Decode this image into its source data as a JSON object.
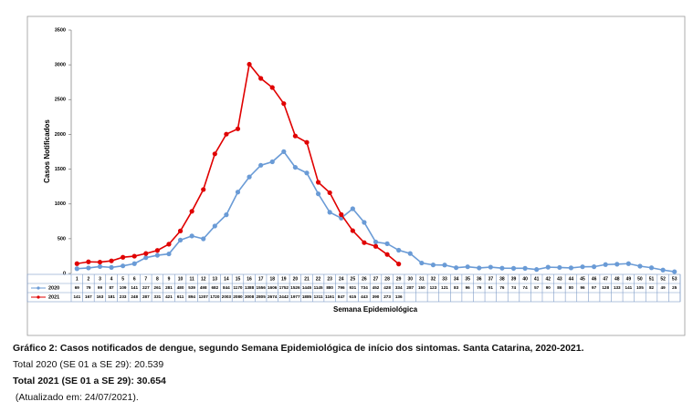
{
  "chart_data": {
    "type": "line",
    "y_label": "Casos Notificados",
    "x_label": "Semana Epidemiológica",
    "categories": [
      1,
      2,
      3,
      4,
      5,
      6,
      7,
      8,
      9,
      10,
      11,
      12,
      13,
      14,
      15,
      16,
      17,
      18,
      19,
      20,
      21,
      22,
      23,
      24,
      25,
      26,
      27,
      28,
      29,
      30,
      31,
      32,
      33,
      34,
      35,
      36,
      37,
      38,
      39,
      40,
      41,
      42,
      43,
      44,
      45,
      46,
      47,
      48,
      49,
      50,
      51,
      52,
      53
    ],
    "series": [
      {
        "name": "2020",
        "color": "#6a9bd6",
        "values": [
          69,
          79,
          99,
          87,
          109,
          141,
          227,
          261,
          281,
          480,
          539,
          498,
          682,
          844,
          1170,
          1388,
          1556,
          1606,
          1752,
          1526,
          1445,
          1145,
          880,
          796,
          931,
          734,
          452,
          428,
          334,
          287,
          150,
          123,
          121,
          83,
          96,
          79,
          91,
          76,
          74,
          74,
          57,
          90,
          86,
          80,
          96,
          97,
          128,
          133,
          141,
          105,
          82,
          49,
          25
        ]
      },
      {
        "name": "2021",
        "color": "#e00000",
        "values": [
          141,
          167,
          163,
          181,
          233,
          248,
          287,
          331,
          421,
          611,
          894,
          1207,
          1720,
          2003,
          2080,
          3008,
          2805,
          2674,
          2442,
          1977,
          1885,
          1311,
          1161,
          847,
          615,
          443,
          390,
          273,
          136,
          null,
          null,
          null,
          null,
          null,
          null,
          null,
          null,
          null,
          null,
          null,
          null,
          null,
          null,
          null,
          null,
          null,
          null,
          null,
          null,
          null,
          null,
          null,
          null
        ]
      }
    ],
    "ylim": [
      0,
      3500
    ],
    "yticks": [
      0,
      500,
      1000,
      1500,
      2000,
      2500,
      3000,
      3500
    ],
    "grid": false
  },
  "caption": {
    "title": "Gráfico 2: Casos notificados de dengue, segundo Semana Epidemiológica de início dos sintomas. Santa Catarina, 2020-2021.",
    "total_2020": "Total 2020 (SE 01 a SE 29): 20.539",
    "total_2021": "Total 2021 (SE 01 a SE 29): 30.654",
    "updated": " (Atualizado em: 24/07/2021)."
  }
}
